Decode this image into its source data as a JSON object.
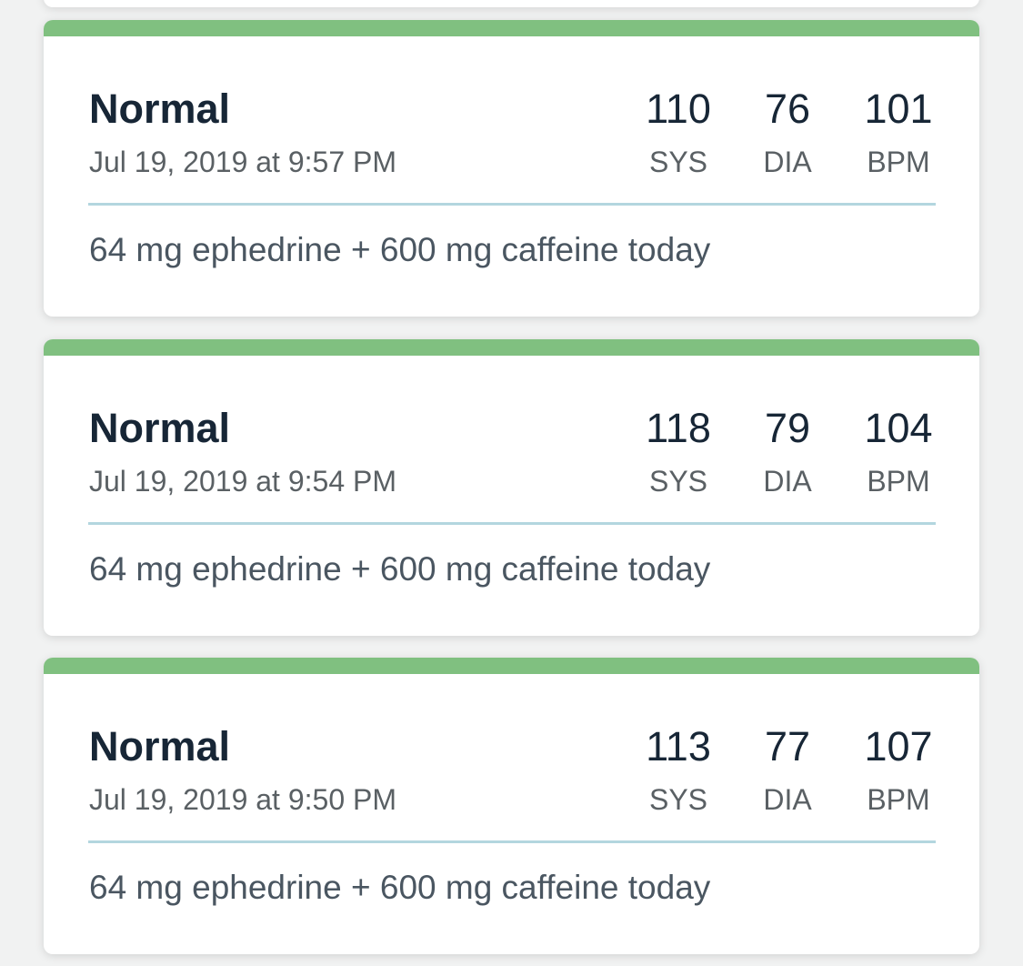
{
  "colors": {
    "status_bar": "#80c080",
    "divider": "#b3d6df"
  },
  "labels": {
    "sys": "SYS",
    "dia": "DIA",
    "bpm": "BPM"
  },
  "readings": [
    {
      "status": "Normal",
      "date": "Jul 19, 2019 at 9:57 PM",
      "sys": "110",
      "dia": "76",
      "bpm": "101",
      "note": "64 mg ephedrine + 600 mg caffeine today"
    },
    {
      "status": "Normal",
      "date": "Jul 19, 2019 at 9:54 PM",
      "sys": "118",
      "dia": "79",
      "bpm": "104",
      "note": "64 mg ephedrine + 600 mg caffeine today"
    },
    {
      "status": "Normal",
      "date": "Jul 19, 2019 at 9:50 PM",
      "sys": "113",
      "dia": "77",
      "bpm": "107",
      "note": "64 mg ephedrine + 600 mg caffeine today"
    }
  ]
}
